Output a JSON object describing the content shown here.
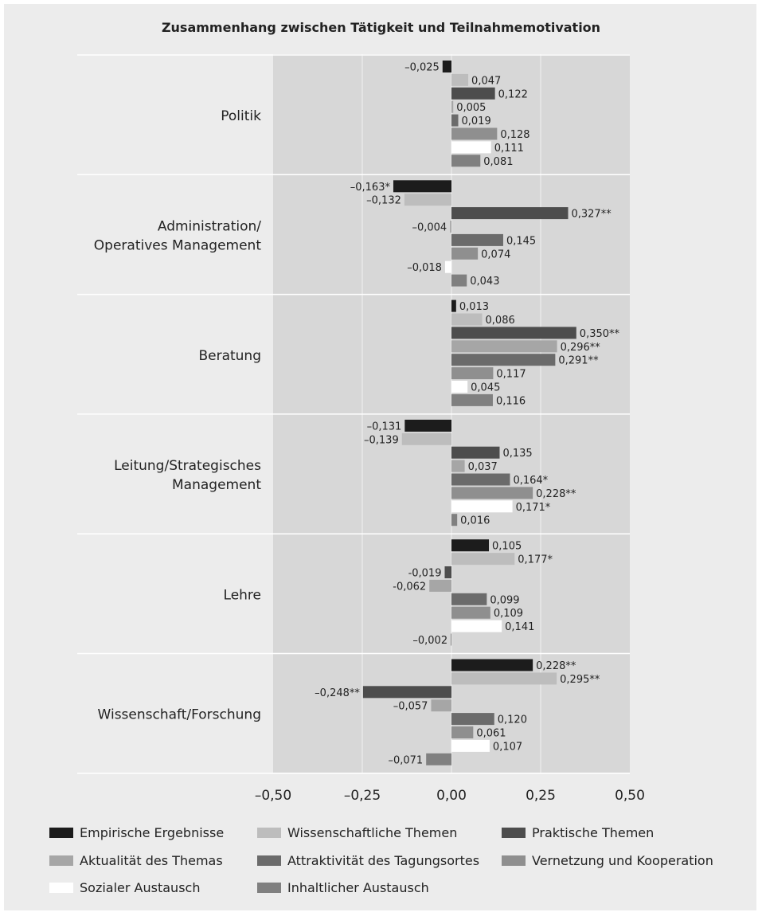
{
  "chart_data": {
    "type": "bar",
    "orientation": "horizontal",
    "title": "Zusammenhang zwischen Tätigkeit und Teilnahmemotivation",
    "xlim": [
      -0.5,
      0.5
    ],
    "xticks": [
      "–0,50",
      "–0,25",
      "0,00",
      "0,25",
      "0,50"
    ],
    "xtick_values": [
      -0.5,
      -0.25,
      0,
      0.25,
      0.5
    ],
    "categories": [
      "Politik",
      "Administration/\nOperatives Management",
      "Beratung",
      "Leitung/Strategisches\nManagement",
      "Lehre",
      "Wissenschaft/Forschung"
    ],
    "series": [
      {
        "name": "Empirische Ergebnisse",
        "color": "#1c1c1c",
        "values": [
          -0.025,
          -0.163,
          0.013,
          -0.131,
          0.105,
          0.228
        ],
        "labels": [
          "–0,025",
          "–0,163*",
          "0,013",
          "–0,131",
          "0,105",
          "0,228**"
        ]
      },
      {
        "name": "Wissenschaftliche Themen",
        "color": "#bdbdbd",
        "values": [
          0.047,
          -0.132,
          0.086,
          -0.139,
          0.177,
          0.295
        ],
        "labels": [
          "0,047",
          "–0,132",
          "0,086",
          "–0,139",
          "0,177*",
          "0,295**"
        ]
      },
      {
        "name": "Praktische Themen",
        "color": "#4d4d4d",
        "values": [
          0.122,
          0.327,
          0.35,
          0.135,
          -0.019,
          -0.248
        ],
        "labels": [
          "0,122",
          "0,327**",
          "0,350**",
          "0,135",
          "-0,019",
          "–0,248**"
        ]
      },
      {
        "name": "Aktualität des Themas",
        "color": "#a6a6a6",
        "values": [
          0.005,
          -0.004,
          0.296,
          0.037,
          -0.062,
          -0.057
        ],
        "labels": [
          "0,005",
          "–0,004",
          "0,296**",
          "0,037",
          "-0,062",
          "–0,057"
        ]
      },
      {
        "name": "Attraktivität des Tagungsortes",
        "color": "#6b6b6b",
        "values": [
          0.019,
          0.145,
          0.291,
          0.164,
          0.099,
          0.12
        ],
        "labels": [
          "0,019",
          "0,145",
          "0,291**",
          "0,164*",
          "0,099",
          "0,120"
        ]
      },
      {
        "name": "Vernetzung und Kooperation",
        "color": "#8f8f8f",
        "values": [
          0.128,
          0.074,
          0.117,
          0.228,
          0.109,
          0.061
        ],
        "labels": [
          "0,128",
          "0,074",
          "0,117",
          "0,228**",
          "0,109",
          "0,061"
        ]
      },
      {
        "name": "Sozialer Austausch",
        "color": "#ffffff",
        "values": [
          0.111,
          -0.018,
          0.045,
          0.171,
          0.141,
          0.107
        ],
        "labels": [
          "0,111",
          "–0,018",
          "0,045",
          "0,171*",
          "0,141",
          "0,107"
        ]
      },
      {
        "name": "Inhaltlicher Austausch",
        "color": "#808080",
        "values": [
          0.081,
          0.043,
          0.116,
          0.016,
          -0.002,
          -0.071
        ],
        "labels": [
          "0,081",
          "0,043",
          "0,116",
          "0,016",
          "–0,002",
          "–0,071"
        ]
      }
    ],
    "grid": true,
    "legend_position": "bottom"
  }
}
